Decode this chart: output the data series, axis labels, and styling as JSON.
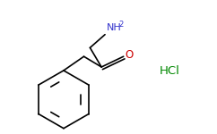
{
  "background_color": "#ffffff",
  "bond_color": "#000000",
  "NH2_color": "#3333cc",
  "O_color": "#cc0000",
  "HCl_color": "#008800",
  "NH2_label": "NH",
  "NH2_sub": "2",
  "O_label": "O",
  "HCl_label": "HCl",
  "figsize": [
    2.42,
    1.5
  ],
  "dpi": 100,
  "bond_lw": 1.2
}
